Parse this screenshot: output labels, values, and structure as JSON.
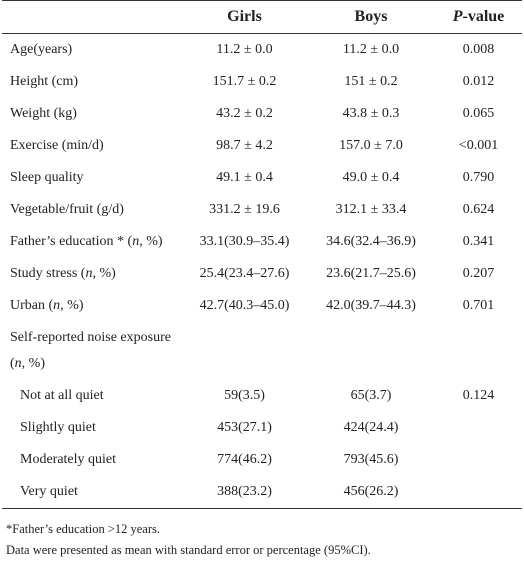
{
  "table": {
    "header": [
      [],
      [
        {
          "text": "Girls"
        }
      ],
      [
        {
          "text": "Boys"
        }
      ],
      [
        {
          "text": "P",
          "italic": true
        },
        {
          "text": "-value"
        }
      ]
    ],
    "rows": [
      {
        "label": [
          {
            "text": "Age(years)"
          }
        ],
        "girls": "11.2 ± 0.0",
        "boys": "11.2 ± 0.0",
        "p": "0.008"
      },
      {
        "label": [
          {
            "text": "Height (cm)"
          }
        ],
        "girls": "151.7 ± 0.2",
        "boys": "151 ± 0.2",
        "p": "0.012"
      },
      {
        "label": [
          {
            "text": "Weight (kg)"
          }
        ],
        "girls": "43.2 ± 0.2",
        "boys": "43.8 ± 0.3",
        "p": "0.065"
      },
      {
        "label": [
          {
            "text": "Exercise (min/d)"
          }
        ],
        "girls": "98.7 ± 4.2",
        "boys": "157.0 ± 7.0",
        "p": "<0.001"
      },
      {
        "label": [
          {
            "text": "Sleep quality"
          }
        ],
        "girls": "49.1 ± 0.4",
        "boys": "49.0 ± 0.4",
        "p": "0.790"
      },
      {
        "label": [
          {
            "text": "Vegetable/fruit (g/d)"
          }
        ],
        "girls": "331.2 ± 19.6",
        "boys": "312.1 ± 33.4",
        "p": "0.624"
      },
      {
        "label": [
          {
            "text": "Father’s education * ("
          },
          {
            "text": "n",
            "italic": true
          },
          {
            "text": ", %)"
          }
        ],
        "girls": "33.1(30.9–35.4)",
        "boys": "34.6(32.4–36.9)",
        "p": "0.341"
      },
      {
        "label": [
          {
            "text": "Study stress ("
          },
          {
            "text": "n",
            "italic": true
          },
          {
            "text": ", %)"
          }
        ],
        "girls": "25.4(23.4–27.6)",
        "boys": "23.6(21.7–25.6)",
        "p": "0.207"
      },
      {
        "label": [
          {
            "text": "Urban ("
          },
          {
            "text": "n",
            "italic": true
          },
          {
            "text": ", %)"
          }
        ],
        "girls": "42.7(40.3–45.0)",
        "boys": "42.0(39.7–44.3)",
        "p": "0.701"
      },
      {
        "label": [
          {
            "text": "Self-reported noise exposure ("
          },
          {
            "text": "n",
            "italic": true
          },
          {
            "text": ", %)"
          }
        ]
      },
      {
        "label": [
          {
            "text": "Not at all quiet"
          }
        ],
        "girls": "59(3.5)",
        "boys": "65(3.7)",
        "p": "0.124",
        "indent": true
      },
      {
        "label": [
          {
            "text": "Slightly quiet"
          }
        ],
        "girls": "453(27.1)",
        "boys": "424(24.4)",
        "indent": true
      },
      {
        "label": [
          {
            "text": "Moderately quiet"
          }
        ],
        "girls": "774(46.2)",
        "boys": "793(45.6)",
        "indent": true
      },
      {
        "label": [
          {
            "text": "Very quiet"
          }
        ],
        "girls": "388(23.2)",
        "boys": "456(26.2)",
        "indent": true
      }
    ],
    "notes": [
      "*Father’s education >12 years.",
      "Data were presented as mean with standard error or percentage (95%CI)."
    ]
  }
}
